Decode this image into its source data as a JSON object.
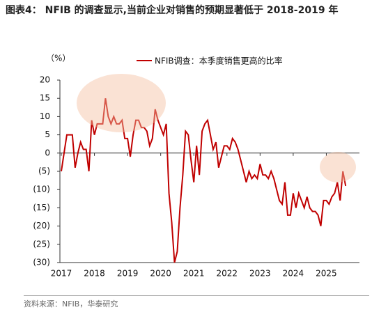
{
  "chart_data": {
    "type": "line",
    "title": "图表4：  NFIB 的调查显示,当前企业对销售的预期显著低于 2018-2019 年",
    "y_unit": "（%）",
    "source": "资料来源：NFIB，华泰研究",
    "series": [
      {
        "name": "NFIB调查：本季度销售更高的比率",
        "color": "#c00000",
        "x": [
          2017,
          2017.083,
          2017.167,
          2017.25,
          2017.333,
          2017.417,
          2017.5,
          2017.583,
          2017.667,
          2017.75,
          2017.833,
          2017.917,
          2018,
          2018.083,
          2018.167,
          2018.25,
          2018.333,
          2018.417,
          2018.5,
          2018.583,
          2018.667,
          2018.75,
          2018.833,
          2018.917,
          2019,
          2019.083,
          2019.167,
          2019.25,
          2019.333,
          2019.417,
          2019.5,
          2019.583,
          2019.667,
          2019.75,
          2019.833,
          2019.917,
          2020,
          2020.083,
          2020.167,
          2020.25,
          2020.333,
          2020.417,
          2020.5,
          2020.583,
          2020.667,
          2020.75,
          2020.833,
          2020.917,
          2021,
          2021.083,
          2021.167,
          2021.25,
          2021.333,
          2021.417,
          2021.5,
          2021.583,
          2021.667,
          2021.75,
          2021.833,
          2021.917,
          2022,
          2022.083,
          2022.167,
          2022.25,
          2022.333,
          2022.417,
          2022.5,
          2022.583,
          2022.667,
          2022.75,
          2022.833,
          2022.917,
          2023,
          2023.083,
          2023.167,
          2023.25,
          2023.333,
          2023.417,
          2023.5,
          2023.583,
          2023.667,
          2023.75,
          2023.833,
          2023.917,
          2024,
          2024.083,
          2024.167,
          2024.25,
          2024.333,
          2024.417,
          2024.5,
          2024.583,
          2024.667,
          2024.75,
          2024.833,
          2024.917,
          2025,
          2025.083,
          2025.167,
          2025.25,
          2025.333,
          2025.417,
          2025.5,
          2025.583
        ],
        "values": [
          -5,
          0,
          5,
          5,
          5,
          -4,
          0,
          3,
          1,
          1,
          -5,
          9,
          5,
          8,
          8,
          8,
          15,
          10,
          8,
          10,
          8,
          8,
          9,
          4,
          4,
          -1,
          5,
          9,
          9,
          7,
          7,
          6,
          2,
          4,
          12,
          9,
          7,
          5,
          8,
          -11,
          -19,
          -30,
          -27,
          -15,
          -6,
          6,
          5,
          -2,
          -8,
          2,
          -6,
          6,
          8,
          9,
          5,
          1,
          3,
          -4,
          -1,
          2,
          2,
          1,
          4,
          3,
          1,
          -2,
          -5,
          -8,
          -5,
          -7,
          -6,
          -7,
          -3,
          -6,
          -6,
          -7,
          -5,
          -7,
          -10,
          -13,
          -14,
          -8,
          -17,
          -17,
          -11,
          -15,
          -11,
          -13,
          -15,
          -12,
          -15,
          -16,
          -16,
          -17,
          -20,
          -13,
          -13,
          -14,
          -12,
          -11,
          -8,
          -13,
          -5,
          -9
        ]
      }
    ],
    "xlim": [
      2017,
      2026
    ],
    "xticks": [
      2017,
      2018,
      2019,
      2020,
      2021,
      2022,
      2023,
      2024,
      2025
    ],
    "ylim": [
      -30,
      20
    ],
    "yticks": [
      20,
      15,
      10,
      5,
      0,
      {
        "value": -5,
        "label": "(5)"
      },
      {
        "value": -10,
        "label": "(10)"
      },
      {
        "value": -15,
        "label": "(15)"
      },
      {
        "value": -20,
        "label": "(20)"
      },
      {
        "value": -25,
        "label": "(25)"
      },
      {
        "value": -30,
        "label": "(30)"
      }
    ]
  }
}
